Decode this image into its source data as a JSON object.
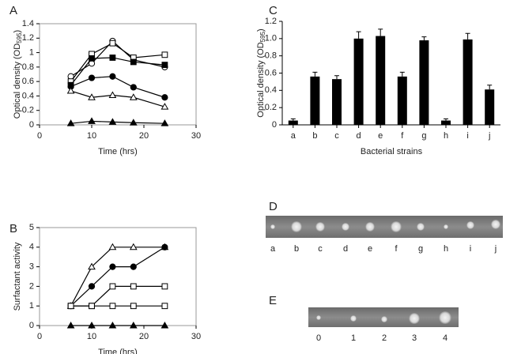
{
  "chart_data": [
    {
      "type": "line",
      "panel": "A",
      "y_label": [
        "Optical density (OD",
        "595",
        ")"
      ],
      "x_label": "Time (hrs)",
      "xlim": [
        0,
        30
      ],
      "xticks": [
        0,
        10,
        20,
        30
      ],
      "ylim": [
        0,
        1.4
      ],
      "yticks": [
        0,
        0.2,
        0.4,
        0.6,
        0.8,
        {
          "value": 1,
          "label": "1"
        },
        1.2,
        1.4
      ],
      "x": [
        6,
        10,
        14,
        18,
        24
      ],
      "series": [
        {
          "marker": "open-circle",
          "color": "#000",
          "values": [
            0.67,
            0.85,
            1.16,
            0.9,
            0.8
          ]
        },
        {
          "marker": "open-square",
          "color": "#000",
          "values": [
            0.6,
            0.98,
            1.13,
            0.93,
            0.97
          ]
        },
        {
          "marker": "filled-square",
          "color": "#000",
          "values": [
            0.55,
            0.92,
            0.93,
            0.87,
            0.83
          ]
        },
        {
          "marker": "filled-circle",
          "color": "#000",
          "values": [
            0.53,
            0.65,
            0.67,
            0.52,
            0.38
          ]
        },
        {
          "marker": "open-triangle",
          "color": "#000",
          "values": [
            0.47,
            0.38,
            0.41,
            0.38,
            0.25
          ]
        },
        {
          "marker": "filled-triangle",
          "color": "#000",
          "values": [
            0.02,
            0.05,
            0.04,
            0.03,
            0.02
          ]
        }
      ]
    },
    {
      "type": "line",
      "panel": "B",
      "y_label": [
        "Surfactant activity"
      ],
      "x_label": "Time (hrs)",
      "xlim": [
        0,
        30
      ],
      "xticks": [
        0,
        10,
        20,
        30
      ],
      "ylim": [
        0,
        5
      ],
      "yticks": [
        0,
        1,
        2,
        3,
        4,
        5
      ],
      "x": [
        6,
        10,
        14,
        18,
        24
      ],
      "series": [
        {
          "marker": "open-triangle",
          "color": "#000",
          "values": [
            1,
            3,
            4,
            4,
            4
          ]
        },
        {
          "marker": "filled-circle",
          "color": "#000",
          "values": [
            1,
            2,
            3,
            3,
            4
          ]
        },
        {
          "marker": "open-square",
          "color": "#000",
          "values": [
            1,
            1,
            2,
            2,
            2
          ]
        },
        {
          "marker": "open-square",
          "color": "#000",
          "values": [
            1,
            1,
            1,
            1,
            1
          ]
        },
        {
          "marker": "filled-triangle",
          "color": "#000",
          "values": [
            0,
            0,
            0,
            0,
            0
          ]
        }
      ]
    },
    {
      "type": "bar",
      "panel": "C",
      "y_label": [
        "Optical density (OD",
        "595",
        ")"
      ],
      "x_label": "Bacterial strains",
      "ylim": [
        0,
        1.2
      ],
      "yticks": [
        0,
        0.2,
        0.4,
        0.6,
        0.8,
        {
          "value": 1,
          "label": "1.0"
        },
        1.2
      ],
      "categories": [
        "a",
        "b",
        "c",
        "d",
        "e",
        "f",
        "g",
        "h",
        "i",
        "j"
      ],
      "color": "#000",
      "values": [
        0.05,
        0.56,
        0.53,
        1.0,
        1.03,
        0.56,
        0.98,
        0.05,
        0.99,
        0.41
      ],
      "errors": [
        0.02,
        0.05,
        0.04,
        0.08,
        0.08,
        0.05,
        0.04,
        0.02,
        0.07,
        0.05
      ]
    }
  ],
  "images": [
    {
      "panel": "D",
      "labels": [
        "a",
        "b",
        "c",
        "d",
        "e",
        "f",
        "g",
        "h",
        "i",
        "j"
      ]
    },
    {
      "panel": "E",
      "labels": [
        "0",
        "1",
        "2",
        "3",
        "4"
      ]
    }
  ]
}
